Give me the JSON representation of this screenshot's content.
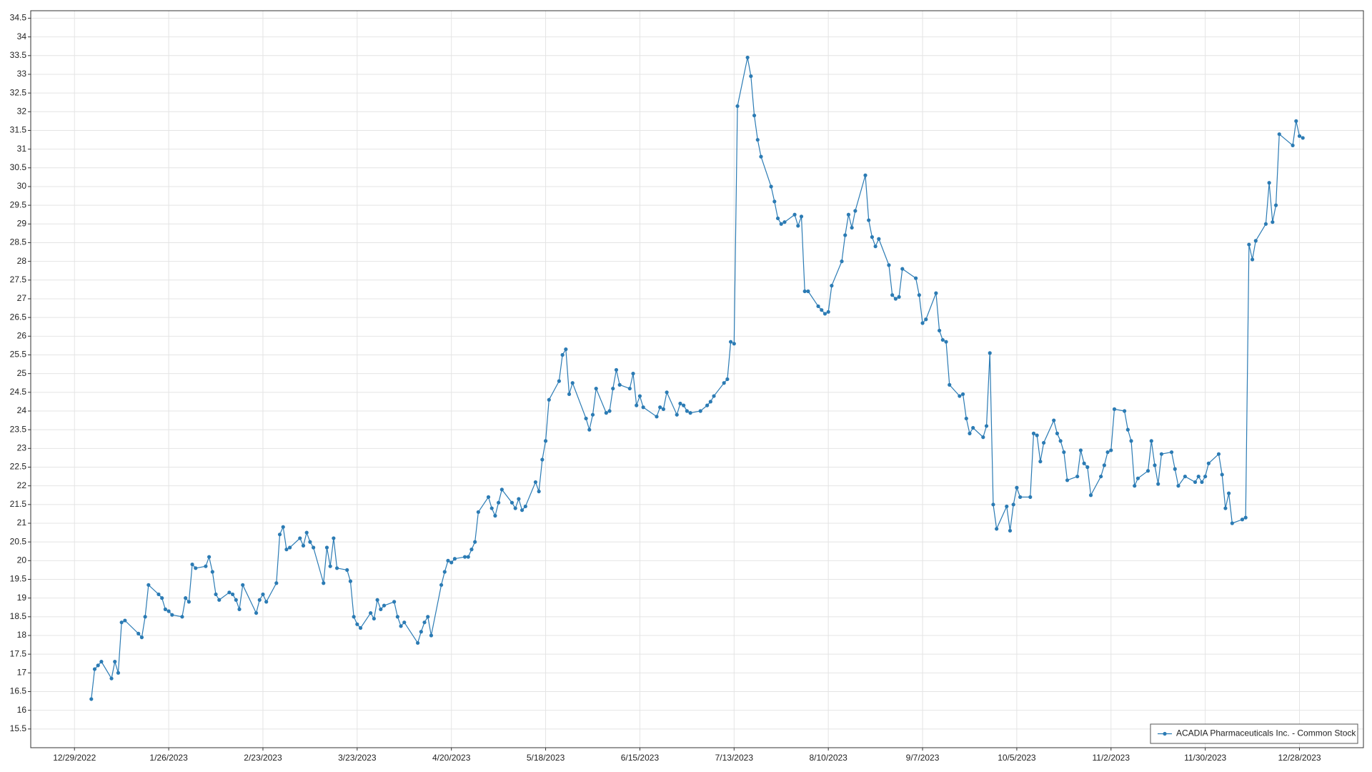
{
  "chart_data": {
    "type": "line",
    "x": [
      "1/3/2023",
      "1/4/2023",
      "1/5/2023",
      "1/6/2023",
      "1/9/2023",
      "1/10/2023",
      "1/11/2023",
      "1/12/2023",
      "1/13/2023",
      "1/17/2023",
      "1/18/2023",
      "1/19/2023",
      "1/20/2023",
      "1/23/2023",
      "1/24/2023",
      "1/25/2023",
      "1/26/2023",
      "1/27/2023",
      "1/30/2023",
      "1/31/2023",
      "2/1/2023",
      "2/2/2023",
      "2/3/2023",
      "2/6/2023",
      "2/7/2023",
      "2/8/2023",
      "2/9/2023",
      "2/10/2023",
      "2/13/2023",
      "2/14/2023",
      "2/15/2023",
      "2/16/2023",
      "2/17/2023",
      "2/21/2023",
      "2/22/2023",
      "2/23/2023",
      "2/24/2023",
      "2/27/2023",
      "2/28/2023",
      "3/1/2023",
      "3/2/2023",
      "3/3/2023",
      "3/6/2023",
      "3/7/2023",
      "3/8/2023",
      "3/9/2023",
      "3/10/2023",
      "3/13/2023",
      "3/14/2023",
      "3/15/2023",
      "3/16/2023",
      "3/17/2023",
      "3/20/2023",
      "3/21/2023",
      "3/22/2023",
      "3/23/2023",
      "3/24/2023",
      "3/27/2023",
      "3/28/2023",
      "3/29/2023",
      "3/30/2023",
      "3/31/2023",
      "4/3/2023",
      "4/4/2023",
      "4/5/2023",
      "4/6/2023",
      "4/10/2023",
      "4/11/2023",
      "4/12/2023",
      "4/13/2023",
      "4/14/2023",
      "4/17/2023",
      "4/18/2023",
      "4/19/2023",
      "4/20/2023",
      "4/21/2023",
      "4/24/2023",
      "4/25/2023",
      "4/26/2023",
      "4/27/2023",
      "4/28/2023",
      "5/1/2023",
      "5/2/2023",
      "5/3/2023",
      "5/4/2023",
      "5/5/2023",
      "5/8/2023",
      "5/9/2023",
      "5/10/2023",
      "5/11/2023",
      "5/12/2023",
      "5/15/2023",
      "5/16/2023",
      "5/17/2023",
      "5/18/2023",
      "5/19/2023",
      "5/22/2023",
      "5/23/2023",
      "5/24/2023",
      "5/25/2023",
      "5/26/2023",
      "5/30/2023",
      "5/31/2023",
      "6/1/2023",
      "6/2/2023",
      "6/5/2023",
      "6/6/2023",
      "6/7/2023",
      "6/8/2023",
      "6/9/2023",
      "6/12/2023",
      "6/13/2023",
      "6/14/2023",
      "6/15/2023",
      "6/16/2023",
      "6/20/2023",
      "6/21/2023",
      "6/22/2023",
      "6/23/2023",
      "6/26/2023",
      "6/27/2023",
      "6/28/2023",
      "6/29/2023",
      "6/30/2023",
      "7/3/2023",
      "7/5/2023",
      "7/6/2023",
      "7/7/2023",
      "7/10/2023",
      "7/11/2023",
      "7/12/2023",
      "7/13/2023",
      "7/14/2023",
      "7/17/2023",
      "7/18/2023",
      "7/19/2023",
      "7/20/2023",
      "7/21/2023",
      "7/24/2023",
      "7/25/2023",
      "7/26/2023",
      "7/27/2023",
      "7/28/2023",
      "7/31/2023",
      "8/1/2023",
      "8/2/2023",
      "8/3/2023",
      "8/4/2023",
      "8/7/2023",
      "8/8/2023",
      "8/9/2023",
      "8/10/2023",
      "8/11/2023",
      "8/14/2023",
      "8/15/2023",
      "8/16/2023",
      "8/17/2023",
      "8/18/2023",
      "8/21/2023",
      "8/22/2023",
      "8/23/2023",
      "8/24/2023",
      "8/25/2023",
      "8/28/2023",
      "8/29/2023",
      "8/30/2023",
      "8/31/2023",
      "9/1/2023",
      "9/5/2023",
      "9/6/2023",
      "9/7/2023",
      "9/8/2023",
      "9/11/2023",
      "9/12/2023",
      "9/13/2023",
      "9/14/2023",
      "9/15/2023",
      "9/18/2023",
      "9/19/2023",
      "9/20/2023",
      "9/21/2023",
      "9/22/2023",
      "9/25/2023",
      "9/26/2023",
      "9/27/2023",
      "9/28/2023",
      "9/29/2023",
      "10/2/2023",
      "10/3/2023",
      "10/4/2023",
      "10/5/2023",
      "10/6/2023",
      "10/9/2023",
      "10/10/2023",
      "10/11/2023",
      "10/12/2023",
      "10/13/2023",
      "10/16/2023",
      "10/17/2023",
      "10/18/2023",
      "10/19/2023",
      "10/20/2023",
      "10/23/2023",
      "10/24/2023",
      "10/25/2023",
      "10/26/2023",
      "10/27/2023",
      "10/30/2023",
      "10/31/2023",
      "11/1/2023",
      "11/2/2023",
      "11/3/2023",
      "11/6/2023",
      "11/7/2023",
      "11/8/2023",
      "11/9/2023",
      "11/10/2023",
      "11/13/2023",
      "11/14/2023",
      "11/15/2023",
      "11/16/2023",
      "11/17/2023",
      "11/20/2023",
      "11/21/2023",
      "11/22/2023",
      "11/24/2023",
      "11/27/2023",
      "11/28/2023",
      "11/29/2023",
      "11/30/2023",
      "12/1/2023",
      "12/4/2023",
      "12/5/2023",
      "12/6/2023",
      "12/7/2023",
      "12/8/2023",
      "12/11/2023",
      "12/12/2023",
      "12/13/2023",
      "12/14/2023",
      "12/15/2023",
      "12/18/2023",
      "12/19/2023",
      "12/20/2023",
      "12/21/2023",
      "12/22/2023",
      "12/26/2023",
      "12/27/2023",
      "12/28/2023",
      "12/29/2023"
    ],
    "series": [
      {
        "name": "ACADIA Pharmaceuticals Inc. - Common Stock",
        "color": "#2b7bb4",
        "values": [
          16.3,
          17.1,
          17.2,
          17.3,
          16.85,
          17.3,
          17.0,
          18.35,
          18.4,
          18.05,
          17.95,
          18.5,
          19.35,
          19.1,
          19.0,
          18.7,
          18.65,
          18.55,
          18.5,
          19.0,
          18.9,
          19.9,
          19.8,
          19.85,
          20.1,
          19.7,
          19.1,
          18.95,
          19.15,
          19.1,
          18.95,
          18.7,
          19.35,
          18.6,
          18.95,
          19.1,
          18.9,
          19.4,
          20.7,
          20.9,
          20.3,
          20.35,
          20.6,
          20.4,
          20.75,
          20.5,
          20.35,
          19.4,
          20.35,
          19.85,
          20.6,
          19.8,
          19.75,
          19.45,
          18.5,
          18.3,
          18.2,
          18.6,
          18.45,
          18.95,
          18.7,
          18.8,
          18.9,
          18.5,
          18.25,
          18.35,
          17.8,
          18.1,
          18.35,
          18.5,
          18.0,
          19.35,
          19.7,
          20.0,
          19.95,
          20.05,
          20.1,
          20.1,
          20.3,
          20.5,
          21.3,
          21.7,
          21.4,
          21.2,
          21.55,
          21.9,
          21.55,
          21.4,
          21.65,
          21.35,
          21.45,
          22.1,
          21.85,
          22.7,
          23.2,
          24.3,
          24.8,
          25.5,
          25.65,
          24.45,
          24.75,
          23.8,
          23.5,
          23.9,
          24.6,
          23.95,
          24.0,
          24.6,
          25.1,
          24.7,
          24.6,
          25.0,
          24.15,
          24.4,
          24.1,
          23.85,
          24.1,
          24.05,
          24.5,
          23.9,
          24.2,
          24.15,
          24.0,
          23.95,
          24.0,
          24.15,
          24.25,
          24.4,
          24.75,
          24.85,
          25.85,
          25.8,
          32.15,
          33.45,
          32.95,
          31.9,
          31.25,
          30.8,
          30.0,
          29.6,
          29.15,
          29.0,
          29.05,
          29.25,
          28.95,
          29.2,
          27.2,
          27.2,
          26.8,
          26.7,
          26.6,
          26.65,
          27.35,
          28.0,
          28.7,
          29.25,
          28.9,
          29.35,
          30.3,
          29.1,
          28.65,
          28.4,
          28.6,
          27.9,
          27.1,
          27.0,
          27.05,
          27.8,
          27.55,
          27.1,
          26.35,
          26.45,
          27.15,
          26.15,
          25.9,
          25.85,
          24.7,
          24.4,
          24.45,
          23.8,
          23.4,
          23.55,
          23.3,
          23.6,
          25.55,
          21.5,
          20.85,
          21.45,
          20.8,
          21.5,
          21.95,
          21.7,
          21.7,
          23.4,
          23.35,
          22.65,
          23.15,
          23.75,
          23.4,
          23.2,
          22.9,
          22.15,
          22.25,
          22.95,
          22.6,
          22.5,
          21.75,
          22.25,
          22.55,
          22.9,
          22.95,
          24.05,
          24.0,
          23.5,
          23.2,
          22.0,
          22.2,
          22.4,
          23.2,
          22.55,
          22.05,
          22.85,
          22.9,
          22.45,
          22.0,
          22.25,
          22.1,
          22.25,
          22.1,
          22.25,
          22.6,
          22.85,
          22.3,
          21.4,
          21.8,
          21.0,
          21.1,
          21.15,
          28.45,
          28.05,
          28.55,
          29.0,
          30.1,
          29.05,
          29.5,
          31.4,
          31.1,
          31.75,
          31.35,
          31.3
        ]
      }
    ],
    "xlim": [
      "12/16/2022",
      "1/16/2024"
    ],
    "xticks": [
      "12/29/2022",
      "1/26/2023",
      "2/23/2023",
      "3/23/2023",
      "4/20/2023",
      "5/18/2023",
      "6/15/2023",
      "7/13/2023",
      "8/10/2023",
      "9/7/2023",
      "10/5/2023",
      "11/2/2023",
      "11/30/2023",
      "12/28/2023"
    ],
    "ylim": [
      15,
      34.7
    ],
    "yticks": [
      15.5,
      16,
      16.5,
      17,
      17.5,
      18,
      18.5,
      19,
      19.5,
      20,
      20.5,
      21,
      21.5,
      22,
      22.5,
      23,
      23.5,
      24,
      24.5,
      25,
      25.5,
      26,
      26.5,
      27,
      27.5,
      28,
      28.5,
      29,
      29.5,
      30,
      30.5,
      31,
      31.5,
      32,
      32.5,
      33,
      33.5,
      34,
      34.5
    ],
    "grid": true,
    "legend": "lower right",
    "markers": true
  }
}
